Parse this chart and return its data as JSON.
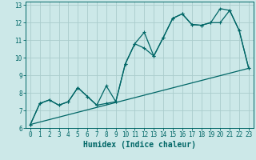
{
  "title": "",
  "xlabel": "Humidex (Indice chaleur)",
  "ylabel": "",
  "background_color": "#cce8e8",
  "grid_color": "#aacccc",
  "line_color": "#006666",
  "xlim": [
    -0.5,
    23.5
  ],
  "ylim": [
    6,
    13.2
  ],
  "xticks": [
    0,
    1,
    2,
    3,
    4,
    5,
    6,
    7,
    8,
    9,
    10,
    11,
    12,
    13,
    14,
    15,
    16,
    17,
    18,
    19,
    20,
    21,
    22,
    23
  ],
  "yticks": [
    6,
    7,
    8,
    9,
    10,
    11,
    12,
    13
  ],
  "line1_x": [
    0,
    1,
    2,
    3,
    4,
    5,
    6,
    7,
    8,
    9,
    10,
    11,
    12,
    13,
    14,
    15,
    16,
    17,
    18,
    19,
    20,
    21,
    22,
    23
  ],
  "line1_y": [
    6.2,
    7.4,
    7.6,
    7.3,
    7.5,
    8.3,
    7.8,
    7.3,
    7.4,
    7.5,
    9.65,
    10.8,
    10.55,
    10.1,
    11.15,
    12.25,
    12.5,
    11.9,
    11.85,
    12.0,
    12.8,
    12.7,
    11.55,
    9.4
  ],
  "line2_x": [
    0,
    1,
    2,
    3,
    4,
    5,
    6,
    7,
    8,
    9,
    10,
    11,
    12,
    13,
    14,
    15,
    16,
    17,
    18,
    19,
    20,
    21,
    22,
    23
  ],
  "line2_y": [
    6.2,
    7.4,
    7.6,
    7.3,
    7.5,
    8.3,
    7.8,
    7.3,
    8.4,
    7.5,
    9.65,
    10.8,
    11.45,
    10.1,
    11.15,
    12.25,
    12.5,
    11.9,
    11.85,
    12.0,
    12.0,
    12.7,
    11.55,
    9.4
  ],
  "line3_x": [
    0,
    23
  ],
  "line3_y": [
    6.2,
    9.4
  ],
  "xlabel_fontsize": 7,
  "tick_fontsize": 5.5,
  "linewidth": 0.9,
  "marker_size": 2.5
}
